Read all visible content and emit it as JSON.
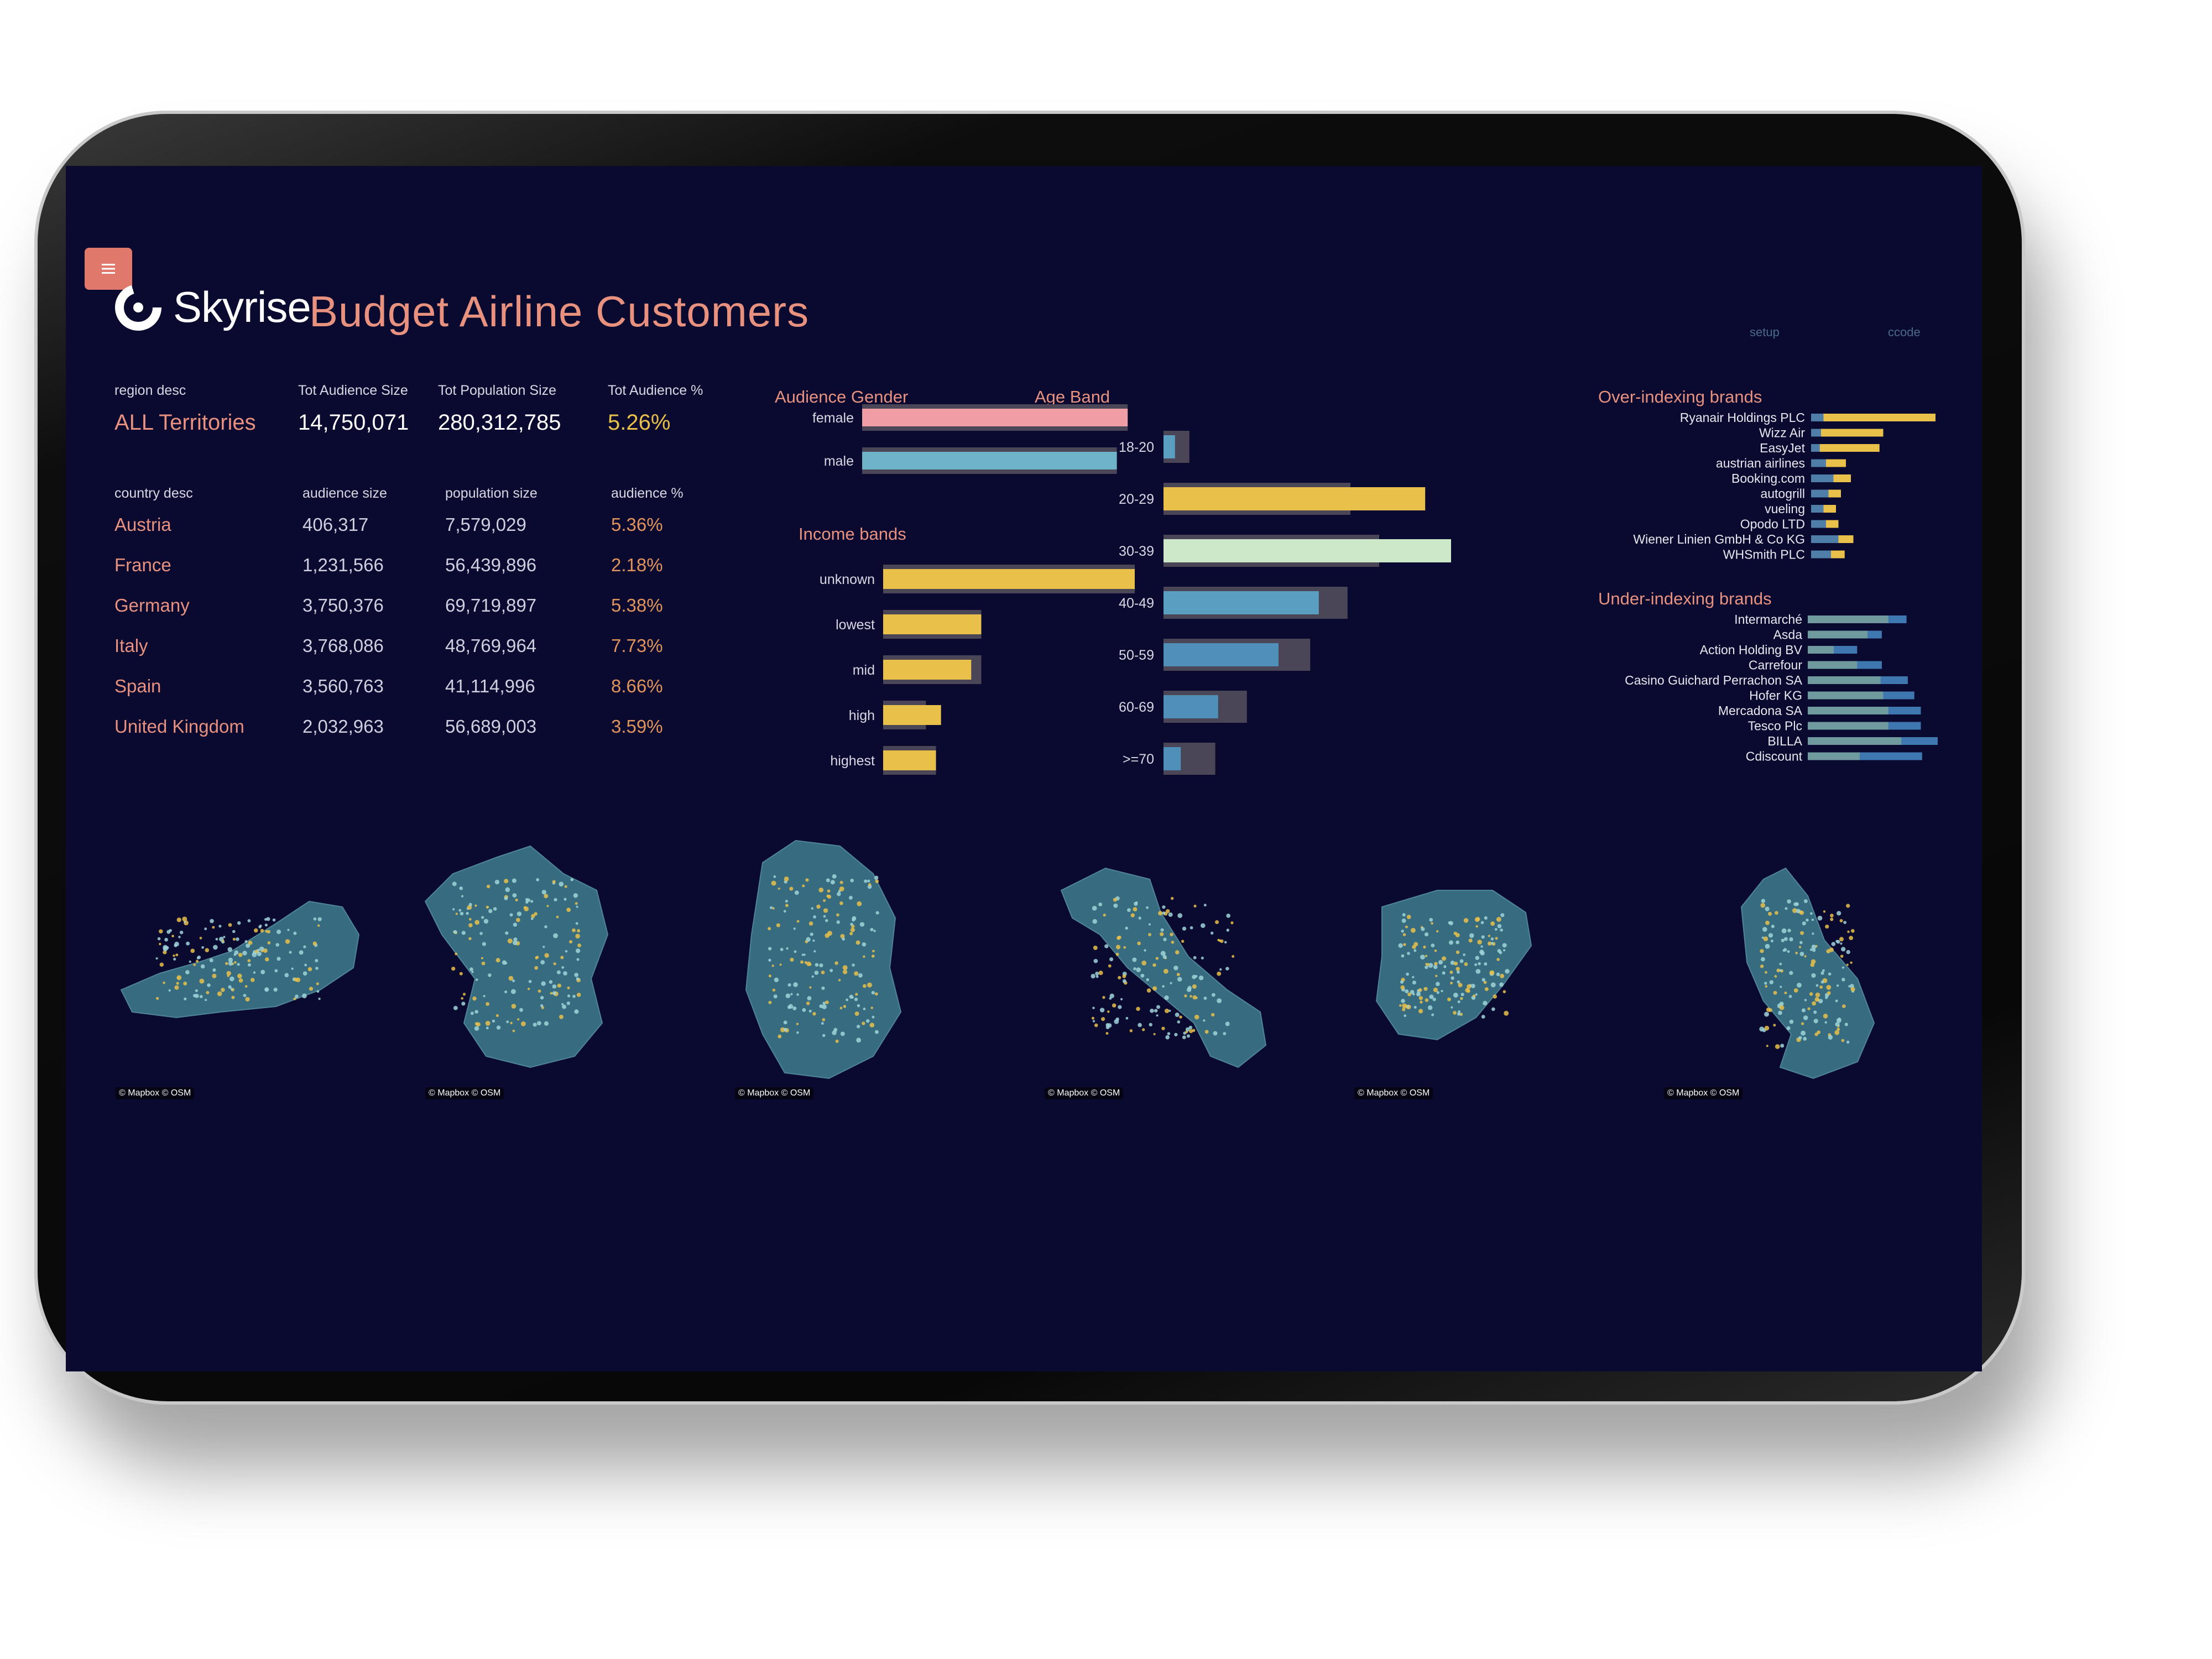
{
  "header": {
    "brand": "Skyrise",
    "title": "Budget Airline Customers",
    "links": [
      "setup",
      "ccode"
    ]
  },
  "summary": {
    "labels": [
      "region desc",
      "Tot Audience Size",
      "Tot Population Size",
      "Tot Audience %"
    ],
    "region": "ALL Territories",
    "audience": "14,750,071",
    "population": "280,312,785",
    "pct": "5.26%"
  },
  "countries": {
    "headers": [
      "country desc",
      "audience size",
      "population size",
      "audience %"
    ],
    "rows": [
      {
        "name": "Austria",
        "audience": "406,317",
        "population": "7,579,029",
        "pct": "5.36%"
      },
      {
        "name": "France",
        "audience": "1,231,566",
        "population": "56,439,896",
        "pct": "2.18%"
      },
      {
        "name": "Germany",
        "audience": "3,750,376",
        "population": "69,719,897",
        "pct": "5.38%"
      },
      {
        "name": "Italy",
        "audience": "3,768,086",
        "population": "48,769,964",
        "pct": "7.73%"
      },
      {
        "name": "Spain",
        "audience": "3,560,763",
        "population": "41,114,996",
        "pct": "8.66%"
      },
      {
        "name": "United Kingdom",
        "audience": "2,032,963",
        "population": "56,689,003",
        "pct": "3.59%"
      }
    ]
  },
  "chart_data": [
    {
      "type": "bar",
      "title": "Audience Gender",
      "categories": [
        "female",
        "male"
      ],
      "values": [
        98,
        94
      ],
      "reference": [
        98,
        94
      ],
      "colors": [
        "#ee9ea4",
        "#6fb3c9"
      ]
    },
    {
      "type": "bar",
      "title": "Income bands",
      "categories": [
        "unknown",
        "lowest",
        "mid",
        "high",
        "highest"
      ],
      "values": [
        100,
        39,
        35,
        23,
        21
      ],
      "reference": [
        100,
        39,
        39,
        17,
        21
      ],
      "colors": [
        "#e8c04a",
        "#e8c04a",
        "#e8c04a",
        "#e8c04a",
        "#e8c04a"
      ]
    },
    {
      "type": "bar",
      "title": "Age Band",
      "categories": [
        "18-20",
        "20-29",
        "30-39",
        "40-49",
        "50-59",
        "60-69",
        ">=70"
      ],
      "values": [
        4,
        91,
        100,
        54,
        40,
        19,
        6
      ],
      "reference": [
        9,
        65,
        75,
        64,
        51,
        29,
        18
      ],
      "colors": [
        "#5a9fc2",
        "#e8c04a",
        "#cde8c8",
        "#5a9fc2",
        "#4f8fb8",
        "#4f8fb8",
        "#4f8fb8"
      ]
    },
    {
      "type": "bar",
      "title": "Over-indexing brands",
      "categories": [
        "Ryanair Holdings PLC",
        "Wizz Air",
        "EasyJet",
        "austrian airlines",
        "Booking.com",
        "autogrill",
        "vueling",
        "Opodo LTD",
        "Wiener Linien GmbH & Co KG",
        "WHSmith PLC"
      ],
      "values": [
        100,
        58,
        55,
        28,
        32,
        24,
        20,
        22,
        34,
        27
      ],
      "reference": [
        10,
        8,
        7,
        12,
        18,
        14,
        10,
        12,
        22,
        16
      ]
    },
    {
      "type": "bar",
      "title": "Under-indexing brands",
      "categories": [
        "Intermarché",
        "Asda",
        "Action Holding BV",
        "Carrefour",
        "Casino Guichard Perrachon SA",
        "Hofer KG",
        "Mercadona SA",
        "Tesco Plc",
        "BILLA",
        "Cdiscount"
      ],
      "values": [
        62,
        46,
        20,
        38,
        56,
        58,
        62,
        62,
        72,
        40
      ],
      "reference": [
        76,
        57,
        38,
        57,
        77,
        82,
        87,
        87,
        100,
        88
      ]
    }
  ],
  "maps": {
    "attribution": "© Mapbox  © OSM",
    "countries": [
      "Austria",
      "France",
      "Germany",
      "Italy",
      "Spain",
      "United Kingdom"
    ]
  }
}
